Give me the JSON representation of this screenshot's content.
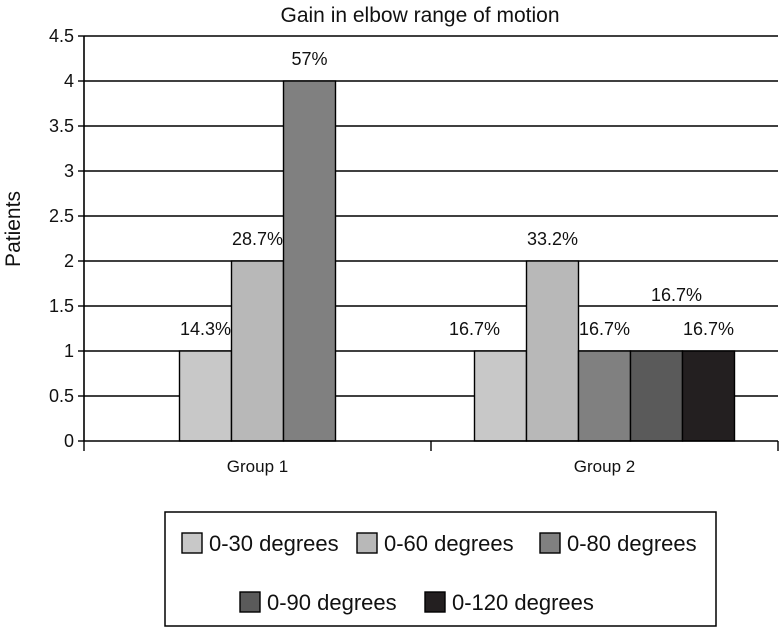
{
  "chart_data": {
    "type": "bar",
    "title": "Gain in elbow range of motion",
    "xlabel": "",
    "ylabel": "Patients",
    "ylim": [
      0,
      4.5
    ],
    "yticks": [
      "0",
      "0.5",
      "1",
      "1.5",
      "2",
      "2.5",
      "3",
      "3.5",
      "4",
      "4.5"
    ],
    "grid": true,
    "legend_position": "bottom",
    "categories": [
      "Group 1",
      "Group 2"
    ],
    "series": [
      {
        "name": "0-30 degrees",
        "color": "#c8c8c8",
        "values": [
          1,
          1
        ],
        "labels": [
          "14.3%",
          "16.7%"
        ]
      },
      {
        "name": "0-60 degrees",
        "color": "#b8b8b8",
        "values": [
          2,
          2
        ],
        "labels": [
          "28.7%",
          "33.2%"
        ]
      },
      {
        "name": "0-80 degrees",
        "color": "#808080",
        "values": [
          4,
          1
        ],
        "labels": [
          "57%",
          "16.7%"
        ]
      },
      {
        "name": "0-90 degrees",
        "color": "#5a5a5a",
        "values": [
          null,
          1
        ],
        "labels": [
          null,
          "16.7%"
        ]
      },
      {
        "name": "0-120 degrees",
        "color": "#231f20",
        "values": [
          null,
          1
        ],
        "labels": [
          null,
          "16.7%"
        ]
      }
    ]
  }
}
